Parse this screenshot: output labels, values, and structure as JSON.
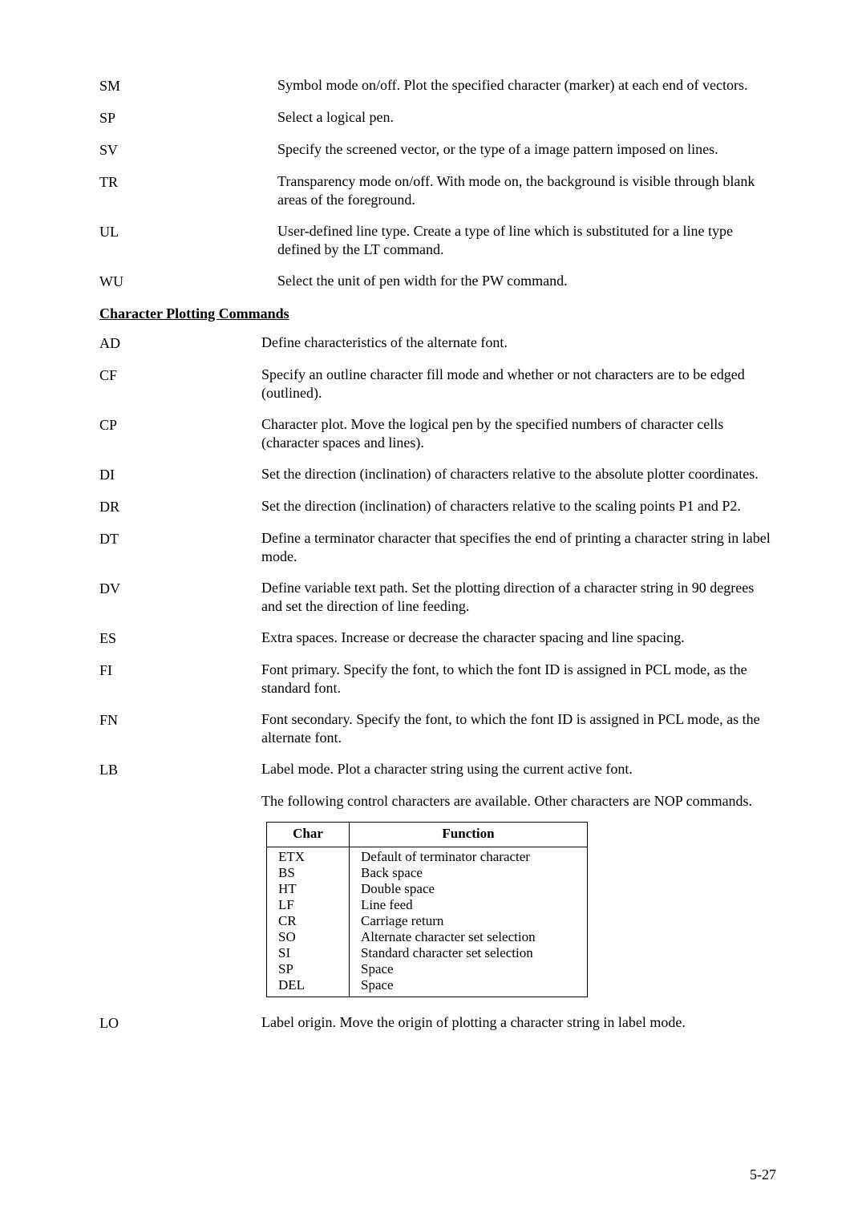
{
  "commands_a": [
    {
      "code": "SM",
      "desc": "Symbol mode on/off.  Plot the specified character (marker) at each end of vectors."
    },
    {
      "code": "SP",
      "desc": "Select a logical pen."
    },
    {
      "code": "SV",
      "desc": "Specify the screened vector, or the type of a image pattern imposed on lines."
    },
    {
      "code": "TR",
      "desc": "Transparency mode on/off.  With mode on, the background is visible through blank areas of the foreground."
    },
    {
      "code": "UL",
      "desc": "User-defined line type.  Create a type of line which is substituted for a line type defined by the LT command."
    },
    {
      "code": "WU",
      "desc": "Select the unit of pen width for the PW command."
    }
  ],
  "section_b_heading": "Character Plotting Commands",
  "commands_b": [
    {
      "code": "AD",
      "desc": "Define characteristics of the alternate font."
    },
    {
      "code": "CF",
      "desc": "Specify an outline character fill mode and whether or not characters are to be edged (outlined)."
    },
    {
      "code": "CP",
      "desc": "Character plot.  Move the logical pen by the specified numbers of character cells (character spaces and lines)."
    },
    {
      "code": "DI",
      "desc": "Set the direction (inclination) of characters relative to the absolute plotter coordinates."
    },
    {
      "code": "DR",
      "desc": "Set the direction (inclination) of characters relative to the scaling points P1 and P2."
    },
    {
      "code": "DT",
      "desc": "Define a terminator character that specifies the end of printing a character string in label mode."
    },
    {
      "code": "DV",
      "desc": "Define variable text path.  Set the plotting direction of a character string in 90 degrees and set the direction of line feeding."
    },
    {
      "code": "ES",
      "desc": "Extra spaces.  Increase or decrease the character spacing and line spacing."
    },
    {
      "code": "FI",
      "desc": "Font primary.  Specify the font, to which the font ID is assigned in PCL mode, as the standard font."
    },
    {
      "code": "FN",
      "desc": "Font secondary.  Specify the font, to which the font ID is assigned in PCL mode, as the alternate font."
    },
    {
      "code": "LB",
      "desc": "Label mode.  Plot a character string using the current active font."
    }
  ],
  "lb_note": "The following control characters are available.  Other characters are NOP commands.",
  "ctrl_table": {
    "headers": [
      "Char",
      "Function"
    ],
    "rows": [
      {
        "char": "ETX",
        "func": "Default of terminator character"
      },
      {
        "char": "BS",
        "func": "Back space"
      },
      {
        "char": "HT",
        "func": "Double space"
      },
      {
        "char": "LF",
        "func": "Line feed"
      },
      {
        "char": "CR",
        "func": "Carriage return"
      },
      {
        "char": "SO",
        "func": "Alternate character set selection"
      },
      {
        "char": "SI",
        "func": "Standard character set selection"
      },
      {
        "char": "SP",
        "func": "Space"
      },
      {
        "char": "DEL",
        "func": "Space"
      }
    ]
  },
  "commands_c": [
    {
      "code": "LO",
      "desc": "Label origin.  Move the origin of plotting a character string in label mode."
    }
  ],
  "page_number": "5-27"
}
